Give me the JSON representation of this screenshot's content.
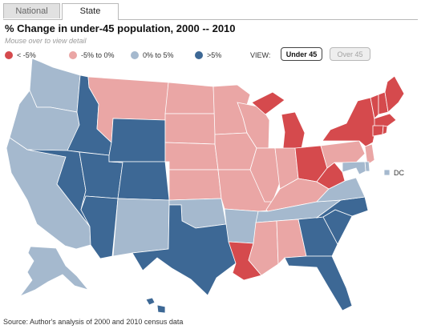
{
  "tabs": {
    "national": "National",
    "state": "State"
  },
  "title": "% Change in under-45 population, 2000 -- 2010",
  "subtitle": "Mouse over to view detail",
  "legend": [
    {
      "label": "< -5%",
      "color": "#d54a4d"
    },
    {
      "label": "-5% to 0%",
      "color": "#eaa6a5"
    },
    {
      "label": "0% to 5%",
      "color": "#a5b9ce"
    },
    {
      "label": ">5%",
      "color": "#3d6895"
    }
  ],
  "view": {
    "label": "VIEW:",
    "under": "Under 45",
    "over": "Over 45",
    "selected": "Under 45"
  },
  "dc_label": "DC",
  "source": "Source: Author's analysis of 2000 and 2010 census data",
  "states": {
    "WA": "0% to 5%",
    "OR": "0% to 5%",
    "CA": "0% to 5%",
    "ID": ">5%",
    "NV": ">5%",
    "UT": ">5%",
    "AZ": ">5%",
    "MT": "-5% to 0%",
    "WY": ">5%",
    "CO": ">5%",
    "NM": "0% to 5%",
    "ND": "-5% to 0%",
    "SD": "-5% to 0%",
    "NE": "-5% to 0%",
    "KS": "-5% to 0%",
    "OK": "0% to 5%",
    "TX": ">5%",
    "MN": "-5% to 0%",
    "IA": "-5% to 0%",
    "MO": "-5% to 0%",
    "AR": "0% to 5%",
    "LA": "< -5%",
    "WI": "-5% to 0%",
    "IL": "-5% to 0%",
    "MI": "< -5%",
    "IN": "-5% to 0%",
    "OH": "< -5%",
    "KY": "-5% to 0%",
    "TN": "0% to 5%",
    "MS": "-5% to 0%",
    "AL": "-5% to 0%",
    "GA": ">5%",
    "FL": ">5%",
    "SC": ">5%",
    "NC": ">5%",
    "VA": "0% to 5%",
    "WV": "< -5%",
    "PA": "-5% to 0%",
    "NY": "< -5%",
    "VT": "< -5%",
    "NH": "< -5%",
    "ME": "< -5%",
    "MA": "< -5%",
    "CT": "< -5%",
    "RI": "< -5%",
    "NJ": "-5% to 0%",
    "DE": "0% to 5%",
    "MD": "0% to 5%",
    "DC": "0% to 5%",
    "AK": "0% to 5%",
    "HI": ">5%"
  }
}
